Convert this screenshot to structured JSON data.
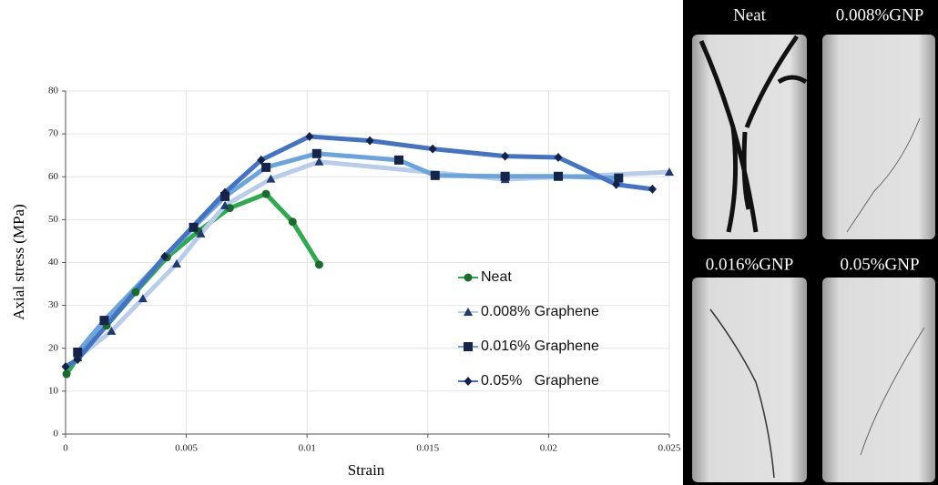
{
  "chart_data": {
    "type": "line",
    "xlabel": "Strain",
    "ylabel": "Axial stress (MPa)",
    "xlim": [
      0,
      0.025
    ],
    "xticks": [
      0,
      0.005,
      0.01,
      0.015,
      0.02,
      0.025
    ],
    "ylim": [
      0,
      80
    ],
    "yticks": [
      0,
      10,
      20,
      30,
      40,
      50,
      60,
      70,
      80
    ],
    "grid": true,
    "series": [
      {
        "name": "Neat",
        "color": "#2eaa4e",
        "marker": "circle",
        "marker_color": "#1a6b2e",
        "x": [
          4e-05,
          0.0005,
          0.0017,
          0.0029,
          0.0042,
          0.0055,
          0.0068,
          0.0083,
          0.0094,
          0.0105
        ],
        "values": [
          14,
          17.8,
          25.3,
          33.1,
          41.2,
          47.3,
          52.7,
          56,
          49.5,
          39.5
        ]
      },
      {
        "name": "0.008% Graphene",
        "color": "#b9cdea",
        "marker": "triangle",
        "marker_color": "#1f3a6e",
        "x": [
          0.0005,
          0.0019,
          0.0032,
          0.0046,
          0.0056,
          0.0066,
          0.0085,
          0.0105,
          0.0182,
          0.025
        ],
        "values": [
          17.8,
          24,
          31.6,
          39.7,
          46.7,
          53.3,
          59.5,
          63.5,
          59.4,
          61.1
        ]
      },
      {
        "name": "0.016% Graphene",
        "color": "#6ba3dc",
        "marker": "square",
        "marker_color": "#15254a",
        "x": [
          0.0005,
          0.0016,
          0.0053,
          0.0066,
          0.0083,
          0.0104,
          0.0138,
          0.0153,
          0.0182,
          0.0204,
          0.0229
        ],
        "values": [
          19.1,
          26.5,
          48.2,
          55.4,
          62.2,
          65.4,
          63.9,
          60.3,
          60.1,
          60.1,
          59.7
        ]
      },
      {
        "name": "0.05%   Graphene",
        "color": "#4472c4",
        "marker": "diamond",
        "marker_color": "#14224a",
        "x": [
          0,
          0.0005,
          0.0041,
          0.0066,
          0.0081,
          0.0101,
          0.0126,
          0.0152,
          0.0182,
          0.0204,
          0.0228,
          0.0243
        ],
        "values": [
          15.7,
          17.4,
          41.4,
          56.3,
          63.9,
          69.4,
          68.4,
          66.5,
          64.8,
          64.5,
          58.2,
          57.1
        ]
      }
    ]
  },
  "photos": {
    "labels": [
      "Neat",
      "0.008%GNP",
      "0.016%GNP",
      "0.05%GNP"
    ]
  }
}
